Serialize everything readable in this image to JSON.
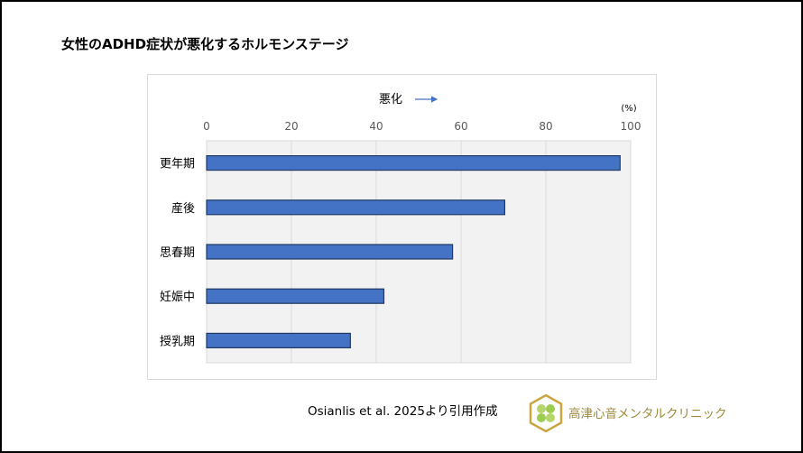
{
  "title": "女性のADHD症状が悪化するホルモンステージ",
  "citation": "Osianlis et al. 2025より引用作成",
  "clinic_name": "高津心音メンタルクリニック",
  "chart_data": {
    "type": "bar",
    "orientation": "horizontal",
    "title": "",
    "axis_annotation": "悪化",
    "unit_label": "(%)",
    "categories": [
      "更年期",
      "産後",
      "思春期",
      "妊娠中",
      "授乳期"
    ],
    "values": [
      97.5,
      70.3,
      58,
      41.8,
      33.9
    ],
    "xlim": [
      0,
      100
    ],
    "xticks": [
      "0",
      "20",
      "40",
      "60",
      "80",
      "100"
    ],
    "x_axis_position": "top",
    "grid": true,
    "bar_color": "#4472c4",
    "bar_edge_color": "#1f3864",
    "plot_background": "#f2f2f2"
  }
}
